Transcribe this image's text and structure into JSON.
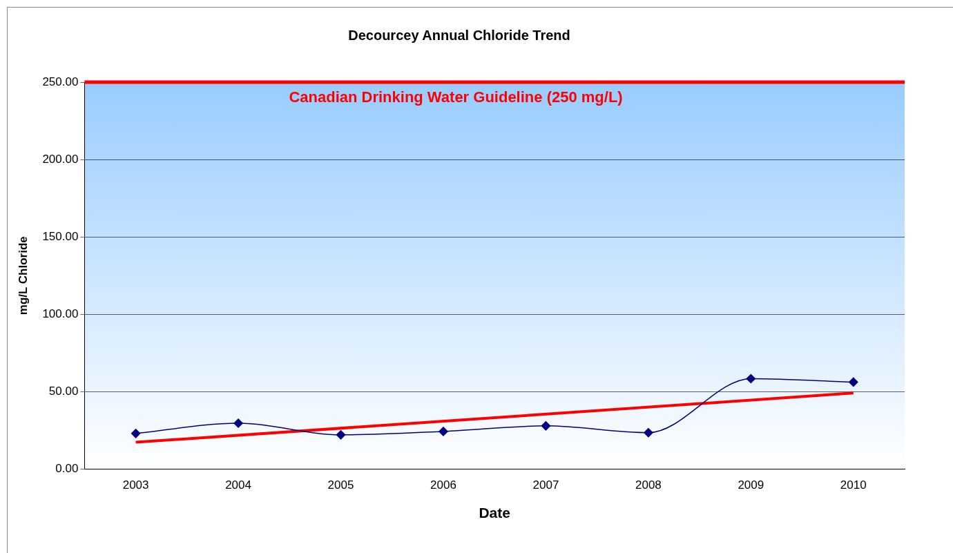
{
  "chart_data": {
    "type": "line",
    "title": "Decourcey Annual Chloride Trend",
    "xlabel": "Date",
    "ylabel": "mg/L Chloride",
    "categories": [
      "2003",
      "2004",
      "2005",
      "2006",
      "2007",
      "2008",
      "2009",
      "2010"
    ],
    "series": [
      {
        "color": "#000080",
        "marker": "diamond",
        "values": [
          23.0,
          29.6,
          22.1,
          24.3,
          27.9,
          23.5,
          58.4,
          56.2
        ]
      },
      {
        "color": "#ff0000",
        "marker": "none",
        "values": [
          17.3,
          null,
          null,
          null,
          null,
          null,
          null,
          49.1
        ]
      }
    ],
    "ylim": [
      0,
      250
    ],
    "yticks": [
      {
        "value": 0,
        "label": "0.00"
      },
      {
        "value": 50,
        "label": "50.00"
      },
      {
        "value": 100,
        "label": "100.00"
      },
      {
        "value": 150,
        "label": "150.00"
      },
      {
        "value": 200,
        "label": "200.00"
      },
      {
        "value": 250,
        "label": "250.00"
      }
    ],
    "ref_lines": [
      {
        "axis": "y",
        "value": 250,
        "label": "Canadian Drinking Water Guideline (250 mg/L)",
        "color": "#ff0000"
      }
    ],
    "grid": "y",
    "legend": false
  }
}
